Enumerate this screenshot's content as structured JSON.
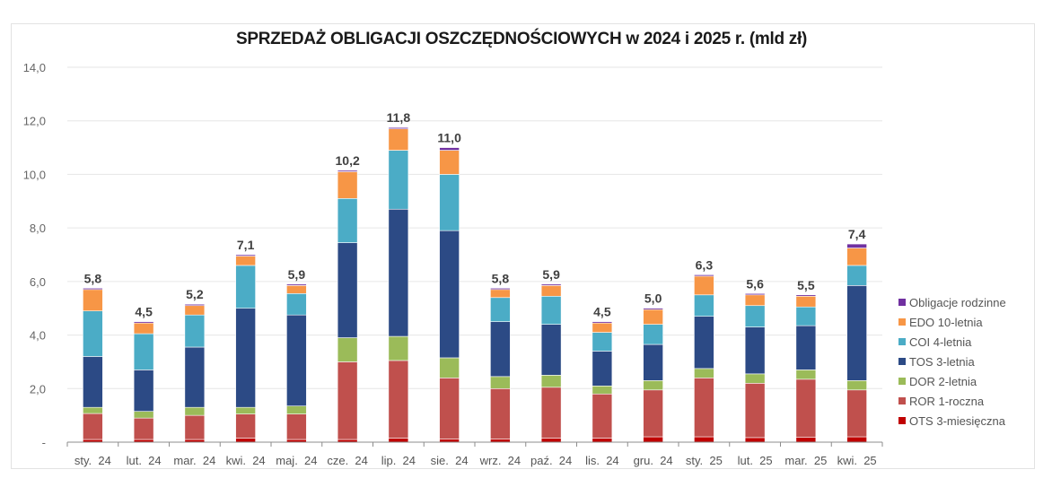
{
  "chart_data": {
    "type": "bar",
    "stacked": true,
    "title": "SPRZEDAŻ OBLIGACJI OSZCZĘDNOŚCIOWYCH w 2024 i 2025 r. (mld zł)",
    "xlabel": "",
    "ylabel": "",
    "ylim": [
      0,
      14
    ],
    "yticks": [
      0,
      2,
      4,
      6,
      8,
      10,
      12,
      14
    ],
    "ytick_labels": [
      "-",
      "2,0",
      "4,0",
      "6,0",
      "8,0",
      "10,0",
      "12,0",
      "14,0"
    ],
    "grid": true,
    "legend_position": "right",
    "categories": [
      "sty.  24",
      "lut.  24",
      "mar.  24",
      "kwi.  24",
      "maj.  24",
      "cze.  24",
      "lip.  24",
      "sie.  24",
      "wrz.  24",
      "paź.  24",
      "lis.  24",
      "gru.  24",
      "sty.  25",
      "lut.  25",
      "mar.  25",
      "kwi.  25"
    ],
    "totals": [
      "5,8",
      "4,5",
      "5,2",
      "7,1",
      "5,9",
      "10,2",
      "11,8",
      "11,0",
      "5,8",
      "5,9",
      "4,5",
      "5,0",
      "6,3",
      "5,6",
      "5,5",
      "7,4"
    ],
    "series": [
      {
        "name": "OTS 3-miesięczna",
        "color": "#C00000",
        "values": [
          0.1,
          0.1,
          0.1,
          0.15,
          0.1,
          0.1,
          0.15,
          0.12,
          0.12,
          0.15,
          0.15,
          0.2,
          0.2,
          0.17,
          0.18,
          0.2
        ]
      },
      {
        "name": "ROR 1-roczna",
        "color": "#C0504D",
        "values": [
          0.97,
          0.8,
          0.9,
          0.9,
          0.95,
          2.9,
          2.9,
          2.28,
          1.88,
          1.9,
          1.65,
          1.75,
          2.2,
          2.03,
          2.17,
          1.75
        ]
      },
      {
        "name": "DOR 2-letnia",
        "color": "#9BBB59",
        "values": [
          0.23,
          0.25,
          0.3,
          0.25,
          0.3,
          0.9,
          0.9,
          0.75,
          0.45,
          0.45,
          0.3,
          0.35,
          0.35,
          0.35,
          0.35,
          0.35
        ]
      },
      {
        "name": "TOS 3-letnia",
        "color": "#2C4A85",
        "values": [
          1.9,
          1.55,
          2.25,
          3.7,
          3.4,
          3.55,
          4.75,
          4.75,
          2.05,
          1.9,
          1.3,
          1.35,
          1.95,
          1.75,
          1.65,
          3.55
        ]
      },
      {
        "name": "COI 4-letnia",
        "color": "#4BACC6",
        "values": [
          1.7,
          1.35,
          1.2,
          1.6,
          0.8,
          1.65,
          2.2,
          2.1,
          0.9,
          1.05,
          0.7,
          0.75,
          0.8,
          0.8,
          0.7,
          0.75
        ]
      },
      {
        "name": "EDO 10-letnia",
        "color": "#F79646",
        "values": [
          0.8,
          0.4,
          0.35,
          0.35,
          0.3,
          1.0,
          0.8,
          0.9,
          0.3,
          0.4,
          0.35,
          0.55,
          0.7,
          0.4,
          0.4,
          0.65
        ]
      },
      {
        "name": "Obligacje rodzinne",
        "color": "#7030A0",
        "values": [
          0.05,
          0.05,
          0.05,
          0.05,
          0.05,
          0.05,
          0.05,
          0.1,
          0.05,
          0.05,
          0.05,
          0.05,
          0.05,
          0.05,
          0.05,
          0.15
        ]
      }
    ],
    "legend_order": [
      "Obligacje rodzinne",
      "EDO 10-letnia",
      "COI 4-letnia",
      "TOS 3-letnia",
      "DOR 2-letnia",
      "ROR 1-roczna",
      "OTS 3-miesięczna"
    ]
  }
}
